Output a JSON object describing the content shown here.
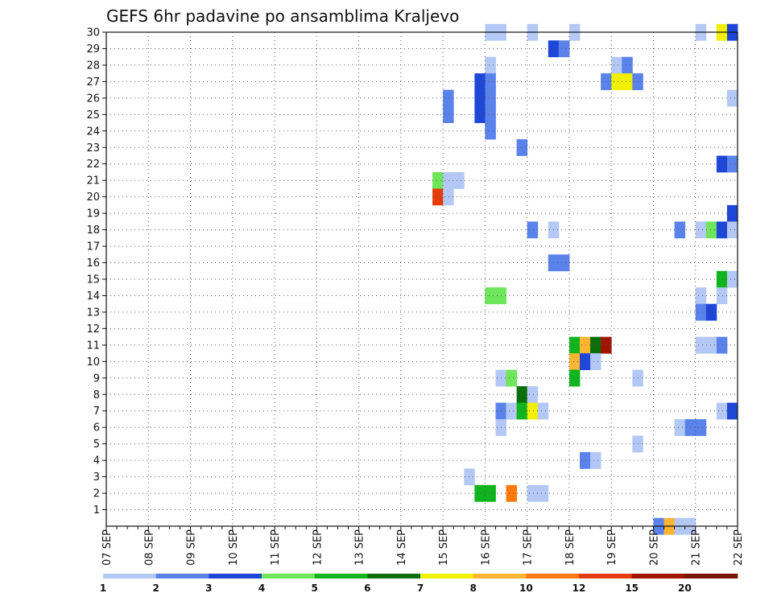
{
  "chart_data": {
    "type": "heatmap",
    "title": "GEFS 6hr padavine po ansamblima Kraljevo",
    "xlabel": "",
    "ylabel": "",
    "x_ticks": [
      "07 SEP",
      "08 SEP",
      "09 SEP",
      "10 SEP",
      "11 SEP",
      "12 SEP",
      "13 SEP",
      "14 SEP",
      "15 SEP",
      "16 SEP",
      "17 SEP",
      "18 SEP",
      "19 SEP",
      "20 SEP",
      "21 SEP",
      "22 SEP"
    ],
    "x_range": [
      "07 SEP 00h",
      "22 SEP 00h"
    ],
    "time_step_hours": 6,
    "y_range": [
      0,
      30
    ],
    "y_ticks": [
      1,
      2,
      3,
      4,
      5,
      6,
      7,
      8,
      9,
      10,
      11,
      12,
      13,
      14,
      15,
      16,
      17,
      18,
      19,
      20,
      21,
      22,
      23,
      24,
      25,
      26,
      27,
      28,
      29,
      30
    ],
    "grid": "dotted",
    "colorbar": {
      "labels": [
        "1",
        "2",
        "3",
        "4",
        "5",
        "6",
        "7",
        "8",
        "10",
        "12",
        "15",
        "20"
      ],
      "colors": [
        "#b4c8f5",
        "#5a82eb",
        "#1e46d7",
        "#6ee65a",
        "#10b41e",
        "#0a6e0a",
        "#f0f000",
        "#ffb432",
        "#ff780a",
        "#e63c0a",
        "#a01400",
        "#781400"
      ]
    },
    "cells": [
      {
        "member": 30,
        "day": "16 SEP",
        "hour": 0,
        "cls": 0
      },
      {
        "member": 30,
        "day": "16 SEP",
        "hour": 6,
        "cls": 0
      },
      {
        "member": 30,
        "day": "17 SEP",
        "hour": 0,
        "cls": 0
      },
      {
        "member": 30,
        "day": "18 SEP",
        "hour": 0,
        "cls": 0
      },
      {
        "member": 30,
        "day": "21 SEP",
        "hour": 0,
        "cls": 0
      },
      {
        "member": 30,
        "day": "21 SEP",
        "hour": 12,
        "cls": 6
      },
      {
        "member": 30,
        "day": "21 SEP",
        "hour": 18,
        "cls": 2
      },
      {
        "member": 29,
        "day": "17 SEP",
        "hour": 12,
        "cls": 2
      },
      {
        "member": 29,
        "day": "17 SEP",
        "hour": 18,
        "cls": 1
      },
      {
        "member": 28,
        "day": "16 SEP",
        "hour": 0,
        "cls": 0
      },
      {
        "member": 28,
        "day": "19 SEP",
        "hour": 0,
        "cls": 0
      },
      {
        "member": 28,
        "day": "19 SEP",
        "hour": 6,
        "cls": 1
      },
      {
        "member": 27,
        "day": "15 SEP",
        "hour": 18,
        "cls": 2
      },
      {
        "member": 27,
        "day": "16 SEP",
        "hour": 0,
        "cls": 1
      },
      {
        "member": 27,
        "day": "18 SEP",
        "hour": 18,
        "cls": 1
      },
      {
        "member": 27,
        "day": "19 SEP",
        "hour": 0,
        "cls": 6
      },
      {
        "member": 27,
        "day": "19 SEP",
        "hour": 6,
        "cls": 6
      },
      {
        "member": 27,
        "day": "19 SEP",
        "hour": 12,
        "cls": 1
      },
      {
        "member": 26,
        "day": "15 SEP",
        "hour": 0,
        "cls": 1
      },
      {
        "member": 26,
        "day": "15 SEP",
        "hour": 18,
        "cls": 2
      },
      {
        "member": 26,
        "day": "16 SEP",
        "hour": 0,
        "cls": 1
      },
      {
        "member": 26,
        "day": "21 SEP",
        "hour": 18,
        "cls": 0
      },
      {
        "member": 25,
        "day": "15 SEP",
        "hour": 0,
        "cls": 1
      },
      {
        "member": 25,
        "day": "15 SEP",
        "hour": 18,
        "cls": 2
      },
      {
        "member": 25,
        "day": "16 SEP",
        "hour": 0,
        "cls": 1
      },
      {
        "member": 24,
        "day": "16 SEP",
        "hour": 0,
        "cls": 1
      },
      {
        "member": 23,
        "day": "16 SEP",
        "hour": 18,
        "cls": 1
      },
      {
        "member": 22,
        "day": "21 SEP",
        "hour": 12,
        "cls": 2
      },
      {
        "member": 22,
        "day": "21 SEP",
        "hour": 18,
        "cls": 1
      },
      {
        "member": 21,
        "day": "14 SEP",
        "hour": 18,
        "cls": 3
      },
      {
        "member": 21,
        "day": "15 SEP",
        "hour": 0,
        "cls": 0
      },
      {
        "member": 21,
        "day": "15 SEP",
        "hour": 6,
        "cls": 0
      },
      {
        "member": 20,
        "day": "14 SEP",
        "hour": 18,
        "cls": 9
      },
      {
        "member": 20,
        "day": "15 SEP",
        "hour": 0,
        "cls": 0
      },
      {
        "member": 19,
        "day": "21 SEP",
        "hour": 18,
        "cls": 2
      },
      {
        "member": 18,
        "day": "17 SEP",
        "hour": 0,
        "cls": 1
      },
      {
        "member": 18,
        "day": "17 SEP",
        "hour": 12,
        "cls": 0
      },
      {
        "member": 18,
        "day": "20 SEP",
        "hour": 12,
        "cls": 1
      },
      {
        "member": 18,
        "day": "21 SEP",
        "hour": 0,
        "cls": 0
      },
      {
        "member": 18,
        "day": "21 SEP",
        "hour": 6,
        "cls": 3
      },
      {
        "member": 18,
        "day": "21 SEP",
        "hour": 12,
        "cls": 2
      },
      {
        "member": 18,
        "day": "21 SEP",
        "hour": 18,
        "cls": 0
      },
      {
        "member": 16,
        "day": "17 SEP",
        "hour": 12,
        "cls": 1
      },
      {
        "member": 16,
        "day": "17 SEP",
        "hour": 18,
        "cls": 1
      },
      {
        "member": 15,
        "day": "21 SEP",
        "hour": 12,
        "cls": 4
      },
      {
        "member": 15,
        "day": "21 SEP",
        "hour": 18,
        "cls": 0
      },
      {
        "member": 14,
        "day": "16 SEP",
        "hour": 0,
        "cls": 3
      },
      {
        "member": 14,
        "day": "16 SEP",
        "hour": 6,
        "cls": 3
      },
      {
        "member": 14,
        "day": "21 SEP",
        "hour": 0,
        "cls": 0
      },
      {
        "member": 14,
        "day": "21 SEP",
        "hour": 12,
        "cls": 0
      },
      {
        "member": 13,
        "day": "21 SEP",
        "hour": 0,
        "cls": 1
      },
      {
        "member": 13,
        "day": "21 SEP",
        "hour": 6,
        "cls": 2
      },
      {
        "member": 11,
        "day": "18 SEP",
        "hour": 0,
        "cls": 4
      },
      {
        "member": 11,
        "day": "18 SEP",
        "hour": 6,
        "cls": 7
      },
      {
        "member": 11,
        "day": "18 SEP",
        "hour": 12,
        "cls": 5
      },
      {
        "member": 11,
        "day": "18 SEP",
        "hour": 18,
        "cls": 10
      },
      {
        "member": 11,
        "day": "21 SEP",
        "hour": 0,
        "cls": 0
      },
      {
        "member": 11,
        "day": "21 SEP",
        "hour": 6,
        "cls": 0
      },
      {
        "member": 11,
        "day": "21 SEP",
        "hour": 12,
        "cls": 1
      },
      {
        "member": 10,
        "day": "18 SEP",
        "hour": 0,
        "cls": 7
      },
      {
        "member": 10,
        "day": "18 SEP",
        "hour": 6,
        "cls": 2
      },
      {
        "member": 10,
        "day": "18 SEP",
        "hour": 12,
        "cls": 0
      },
      {
        "member": 9,
        "day": "16 SEP",
        "hour": 6,
        "cls": 0
      },
      {
        "member": 9,
        "day": "16 SEP",
        "hour": 12,
        "cls": 3
      },
      {
        "member": 9,
        "day": "18 SEP",
        "hour": 0,
        "cls": 4
      },
      {
        "member": 9,
        "day": "19 SEP",
        "hour": 12,
        "cls": 0
      },
      {
        "member": 8,
        "day": "16 SEP",
        "hour": 18,
        "cls": 5
      },
      {
        "member": 8,
        "day": "17 SEP",
        "hour": 0,
        "cls": 0
      },
      {
        "member": 7,
        "day": "16 SEP",
        "hour": 6,
        "cls": 1
      },
      {
        "member": 7,
        "day": "16 SEP",
        "hour": 12,
        "cls": 0
      },
      {
        "member": 7,
        "day": "16 SEP",
        "hour": 18,
        "cls": 4
      },
      {
        "member": 7,
        "day": "17 SEP",
        "hour": 0,
        "cls": 6
      },
      {
        "member": 7,
        "day": "17 SEP",
        "hour": 6,
        "cls": 0
      },
      {
        "member": 7,
        "day": "21 SEP",
        "hour": 12,
        "cls": 0
      },
      {
        "member": 7,
        "day": "21 SEP",
        "hour": 18,
        "cls": 2
      },
      {
        "member": 6,
        "day": "16 SEP",
        "hour": 6,
        "cls": 0
      },
      {
        "member": 6,
        "day": "20 SEP",
        "hour": 12,
        "cls": 0
      },
      {
        "member": 6,
        "day": "20 SEP",
        "hour": 18,
        "cls": 1
      },
      {
        "member": 6,
        "day": "21 SEP",
        "hour": 0,
        "cls": 1
      },
      {
        "member": 5,
        "day": "19 SEP",
        "hour": 12,
        "cls": 0
      },
      {
        "member": 4,
        "day": "18 SEP",
        "hour": 6,
        "cls": 1
      },
      {
        "member": 4,
        "day": "18 SEP",
        "hour": 12,
        "cls": 0
      },
      {
        "member": 3,
        "day": "15 SEP",
        "hour": 12,
        "cls": 0
      },
      {
        "member": 2,
        "day": "15 SEP",
        "hour": 18,
        "cls": 4
      },
      {
        "member": 2,
        "day": "16 SEP",
        "hour": 0,
        "cls": 4
      },
      {
        "member": 2,
        "day": "16 SEP",
        "hour": 12,
        "cls": 8
      },
      {
        "member": 2,
        "day": "17 SEP",
        "hour": 0,
        "cls": 0
      },
      {
        "member": 2,
        "day": "17 SEP",
        "hour": 6,
        "cls": 0
      },
      {
        "member": 0,
        "day": "20 SEP",
        "hour": 0,
        "cls": 1
      },
      {
        "member": 0,
        "day": "20 SEP",
        "hour": 6,
        "cls": 7
      },
      {
        "member": 0,
        "day": "20 SEP",
        "hour": 12,
        "cls": 0
      },
      {
        "member": 0,
        "day": "20 SEP",
        "hour": 18,
        "cls": 0
      }
    ]
  }
}
